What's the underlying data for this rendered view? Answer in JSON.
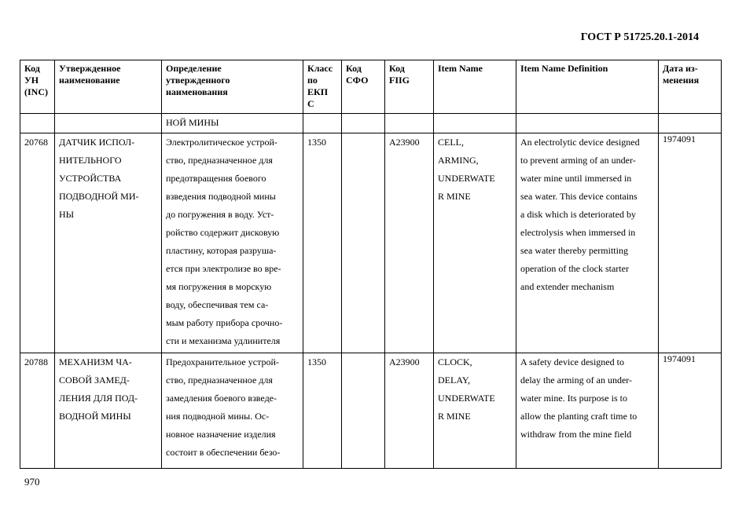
{
  "doc_title": "ГОСТ Р 51725.20.1-2014",
  "page_number": "970",
  "headers": [
    "Код УН (INC)",
    "Утвержденное наименование",
    "Определение утвержденного наименования",
    "Класс по ЕКП С",
    "Код СФО",
    "Код FIIG",
    "Item Name",
    "Item Name Definition",
    "Дата из-менения"
  ],
  "header_lines": [
    [
      "Код",
      "УН",
      "(INC)"
    ],
    [
      "Утвержденное",
      "наименование"
    ],
    [
      "Определение",
      "утвержденного",
      "наименования"
    ],
    [
      "Класс",
      "по",
      "ЕКП",
      "С"
    ],
    [
      "Код",
      "СФО"
    ],
    [
      "Код",
      "FIIG"
    ],
    [
      "Item Name"
    ],
    [
      "Item Name Definition"
    ],
    [
      "Дата из-",
      "менения"
    ]
  ],
  "continuation": "НОЙ МИНЫ",
  "rows": [
    {
      "inc": "20768",
      "name": [
        "ДАТЧИК ИСПОЛ-",
        "НИТЕЛЬНОГО",
        "УСТРОЙСТВА",
        "ПОДВОДНОЙ МИ-",
        "НЫ"
      ],
      "definition": [
        "Электролитическое устрой-",
        "ство, предназначенное для",
        "предотвращения боевого",
        "взведения подводной мины",
        "до погружения в воду. Уст-",
        "ройство содержит дисковую",
        "пластину, которая разруша-",
        "ется при электролизе во вре-",
        "мя погружения в морскую",
        "воду, обеспечивая тем са-",
        "мым работу прибора срочно-",
        "сти и механизма удлинителя"
      ],
      "class": "1350",
      "sfo": "",
      "fiig": "A23900",
      "item_name": [
        "CELL,",
        "ARMING,",
        "UNDERWATE",
        "R MINE"
      ],
      "item_def": [
        "An electrolytic device designed",
        "to prevent arming of an under-",
        "water mine until immersed in",
        "sea water. This device contains",
        "a disk which is deteriorated by",
        "electrolysis when immersed in",
        "sea water thereby permitting",
        "operation of the clock starter",
        "and extender mechanism"
      ],
      "date": "1974091"
    },
    {
      "inc": "20788",
      "name": [
        "МЕХАНИЗМ ЧА-",
        "СОВОЙ ЗАМЕД-",
        "ЛЕНИЯ ДЛЯ ПОД-",
        "ВОДНОЙ МИНЫ"
      ],
      "definition": [
        "Предохранительное устрой-",
        "ство, предназначенное для",
        "замедления боевого взведе-",
        "ния подводной мины. Ос-",
        "новное назначение изделия",
        "состоит в обеспечении безо-"
      ],
      "class": "1350",
      "sfo": "",
      "fiig": "A23900",
      "item_name": [
        "CLOCK,",
        "DELAY,",
        "UNDERWATE",
        "R MINE"
      ],
      "item_def": [
        "A safety device designed to",
        "delay the arming of an under-",
        "water mine. Its purpose is to",
        "allow the planting craft time to",
        "withdraw from the mine field"
      ],
      "date": "1974091"
    }
  ]
}
